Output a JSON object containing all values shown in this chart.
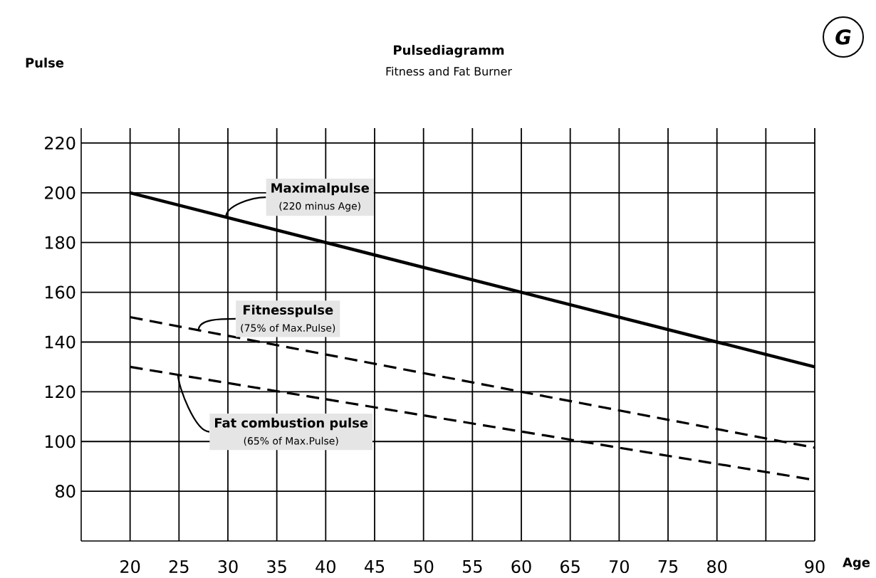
{
  "chart_data": {
    "type": "line",
    "title": "Pulsediagramm",
    "subtitle": "Fitness and Fat Burner",
    "xlabel": "Age",
    "ylabel": "Pulse",
    "xlim": [
      15,
      90
    ],
    "ylim": [
      60,
      226
    ],
    "xticks": [
      20,
      25,
      30,
      35,
      40,
      45,
      50,
      55,
      60,
      65,
      70,
      75,
      80,
      {
        "value": 85,
        "label": null
      },
      90
    ],
    "yticks": [
      80,
      100,
      120,
      140,
      160,
      180,
      200,
      220
    ],
    "x": [
      20,
      90
    ],
    "grid": true,
    "legend": false,
    "marker": "none",
    "series": [
      {
        "name": "Maximalpulse",
        "color": "#000000",
        "line_style": "solid",
        "values": [
          200,
          130
        ]
      },
      {
        "name": "Fitnesspulse",
        "color": "#000000",
        "line_style": "dashed",
        "values": [
          150,
          97.5
        ]
      },
      {
        "name": "Fat combustion pulse",
        "color": "#000000",
        "line_style": "dashed",
        "values": [
          130,
          84.5
        ]
      }
    ],
    "annotations": [
      "(220 minus Age)",
      {
        "text": "(75% of Max.Pulse)",
        "x": 27,
        "y": 144.75
      },
      "(65% of Max.Pulse)",
      "G"
    ]
  }
}
